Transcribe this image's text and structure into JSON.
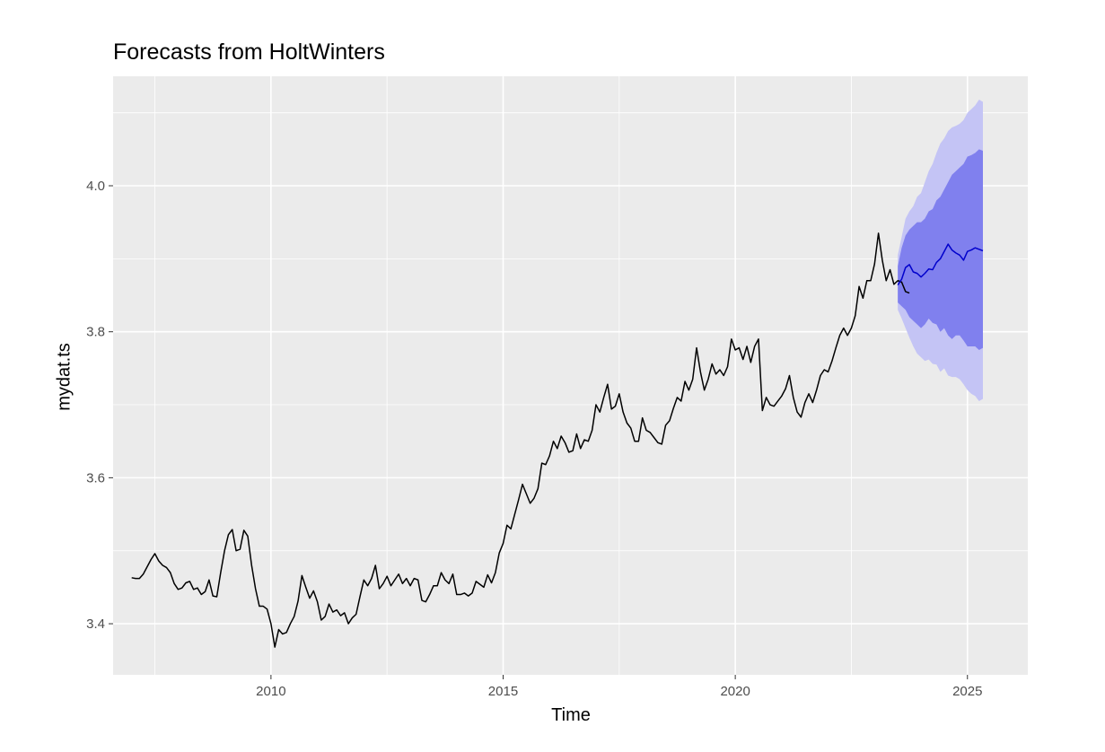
{
  "chart_data": {
    "type": "line",
    "title": "Forecasts from HoltWinters",
    "xlabel": "Time",
    "ylabel": "mydat.ts",
    "xlim": [
      2006.6,
      2026.3
    ],
    "ylim": [
      3.33,
      4.15
    ],
    "x_ticks": [
      2010,
      2015,
      2020,
      2025
    ],
    "x_tick_labels": [
      "2010",
      "2015",
      "2020",
      "2025"
    ],
    "y_ticks": [
      3.4,
      3.6,
      3.8,
      4.0
    ],
    "y_tick_labels": [
      "3.4",
      "3.6",
      "3.8",
      "4.0"
    ],
    "grid": true,
    "colors": {
      "panel": "#ebebeb",
      "grid": "#ffffff",
      "observed": "#000000",
      "forecast": "#0000cc",
      "band95": "#c4c4f5",
      "band80": "#8080ee"
    },
    "observed": {
      "start": 2007.0,
      "frequency": 12,
      "values": [
        3.463,
        3.462,
        3.462,
        3.468,
        3.478,
        3.488,
        3.496,
        3.486,
        3.48,
        3.477,
        3.47,
        3.455,
        3.447,
        3.449,
        3.456,
        3.458,
        3.447,
        3.449,
        3.44,
        3.444,
        3.46,
        3.438,
        3.437,
        3.47,
        3.5,
        3.522,
        3.529,
        3.5,
        3.502,
        3.528,
        3.52,
        3.48,
        3.448,
        3.424,
        3.424,
        3.42,
        3.4,
        3.368,
        3.392,
        3.386,
        3.388,
        3.4,
        3.41,
        3.431,
        3.466,
        3.45,
        3.435,
        3.445,
        3.43,
        3.405,
        3.41,
        3.427,
        3.416,
        3.419,
        3.411,
        3.415,
        3.4,
        3.408,
        3.413,
        3.437,
        3.46,
        3.452,
        3.462,
        3.48,
        3.448,
        3.455,
        3.465,
        3.452,
        3.46,
        3.468,
        3.455,
        3.462,
        3.452,
        3.462,
        3.46,
        3.432,
        3.43,
        3.44,
        3.452,
        3.452,
        3.47,
        3.46,
        3.455,
        3.468,
        3.44,
        3.44,
        3.442,
        3.438,
        3.442,
        3.458,
        3.454,
        3.45,
        3.467,
        3.456,
        3.47,
        3.497,
        3.51,
        3.535,
        3.53,
        3.55,
        3.57,
        3.591,
        3.578,
        3.565,
        3.572,
        3.585,
        3.62,
        3.618,
        3.63,
        3.65,
        3.64,
        3.657,
        3.648,
        3.635,
        3.637,
        3.66,
        3.64,
        3.652,
        3.65,
        3.665,
        3.7,
        3.69,
        3.71,
        3.728,
        3.694,
        3.698,
        3.715,
        3.69,
        3.675,
        3.668,
        3.65,
        3.65,
        3.682,
        3.665,
        3.662,
        3.655,
        3.648,
        3.646,
        3.672,
        3.678,
        3.695,
        3.71,
        3.705,
        3.732,
        3.72,
        3.735,
        3.778,
        3.745,
        3.72,
        3.735,
        3.756,
        3.742,
        3.748,
        3.74,
        3.752,
        3.79,
        3.775,
        3.778,
        3.762,
        3.78,
        3.758,
        3.78,
        3.79,
        3.692,
        3.71,
        3.7,
        3.698,
        3.705,
        3.712,
        3.722,
        3.74,
        3.71,
        3.69,
        3.683,
        3.703,
        3.715,
        3.703,
        3.72,
        3.74,
        3.748,
        3.745,
        3.76,
        3.778,
        3.795,
        3.805,
        3.795,
        3.805,
        3.822,
        3.862,
        3.846,
        3.87,
        3.87,
        3.893,
        3.935,
        3.898,
        3.87,
        3.885,
        3.865,
        3.87,
        3.868,
        3.855,
        3.853
      ]
    },
    "forecast": {
      "start": 2023.5,
      "frequency": 12,
      "mean": [
        3.864,
        3.872,
        3.888,
        3.892,
        3.882,
        3.88,
        3.875,
        3.88,
        3.886,
        3.885,
        3.895,
        3.9,
        3.91,
        3.92,
        3.912,
        3.908,
        3.905,
        3.898,
        3.91,
        3.912,
        3.915,
        3.913,
        3.911
      ],
      "lo80": [
        3.84,
        3.835,
        3.83,
        3.82,
        3.815,
        3.81,
        3.805,
        3.81,
        3.818,
        3.812,
        3.81,
        3.8,
        3.805,
        3.795,
        3.79,
        3.795,
        3.795,
        3.788,
        3.78,
        3.78,
        3.78,
        3.775,
        3.778
      ],
      "hi80": [
        3.89,
        3.915,
        3.932,
        3.94,
        3.945,
        3.95,
        3.95,
        3.955,
        3.965,
        3.968,
        3.98,
        3.985,
        3.995,
        4.005,
        4.015,
        4.02,
        4.025,
        4.03,
        4.04,
        4.042,
        4.045,
        4.05,
        4.048
      ],
      "lo95": [
        3.83,
        3.818,
        3.805,
        3.792,
        3.78,
        3.77,
        3.765,
        3.76,
        3.762,
        3.756,
        3.755,
        3.745,
        3.75,
        3.74,
        3.738,
        3.738,
        3.735,
        3.728,
        3.72,
        3.715,
        3.712,
        3.705,
        3.708
      ],
      "hi95": [
        3.905,
        3.93,
        3.955,
        3.965,
        3.972,
        3.985,
        3.99,
        4.005,
        4.02,
        4.03,
        4.045,
        4.058,
        4.065,
        4.075,
        4.08,
        4.082,
        4.085,
        4.09,
        4.1,
        4.105,
        4.11,
        4.118,
        4.115
      ]
    }
  }
}
